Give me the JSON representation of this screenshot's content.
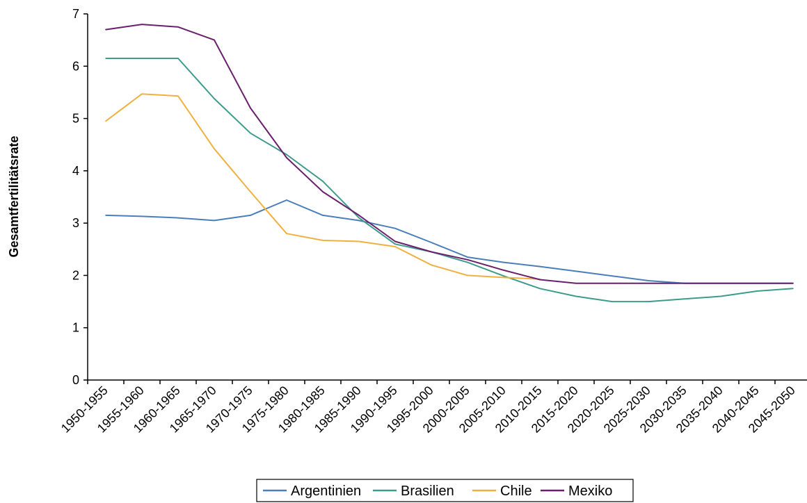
{
  "chart_data": {
    "type": "line",
    "title": "",
    "xlabel": "",
    "ylabel": "Gesamtfertilitätsrate",
    "ylim": [
      0,
      7
    ],
    "yticks": [
      "0",
      "1",
      "2",
      "3",
      "4",
      "5",
      "6",
      "7"
    ],
    "grid": false,
    "legend_position": "bottom",
    "categories": [
      "1950-1955",
      "1955-1960",
      "1960-1965",
      "1965-1970",
      "1970-1975",
      "1975-1980",
      "1980-1985",
      "1985-1990",
      "1990-1995",
      "1995-2000",
      "2000-2005",
      "2005-2010",
      "2010-2015",
      "2015-2020",
      "2020-2025",
      "2025-2030",
      "2030-2035",
      "2035-2040",
      "2040-2045",
      "2045-2050"
    ],
    "series": [
      {
        "name": "Argentinien",
        "color": "#4a7ebb",
        "values": [
          3.15,
          3.13,
          3.1,
          3.05,
          3.15,
          3.44,
          3.15,
          3.05,
          2.9,
          2.63,
          2.35,
          2.25,
          2.17,
          2.08,
          1.99,
          1.9,
          1.85,
          1.85,
          1.85,
          1.85
        ]
      },
      {
        "name": "Brasilien",
        "color": "#3d9b8c",
        "values": [
          6.15,
          6.15,
          6.15,
          5.38,
          4.72,
          4.31,
          3.8,
          3.1,
          2.6,
          2.45,
          2.25,
          1.99,
          1.75,
          1.6,
          1.5,
          1.5,
          1.55,
          1.6,
          1.7,
          1.75
        ]
      },
      {
        "name": "Chile",
        "color": "#f0b040",
        "values": [
          4.95,
          5.47,
          5.43,
          4.42,
          3.6,
          2.8,
          2.67,
          2.65,
          2.55,
          2.2,
          2.0,
          1.96,
          1.93,
          null,
          null,
          null,
          null,
          null,
          null,
          null
        ]
      },
      {
        "name": "Mexiko",
        "color": "#6a1f6e",
        "values": [
          6.7,
          6.8,
          6.75,
          6.5,
          5.2,
          4.25,
          3.6,
          3.15,
          2.65,
          2.45,
          2.3,
          2.1,
          1.92,
          1.85,
          1.85,
          1.85,
          1.85,
          1.85,
          1.85,
          1.85
        ]
      }
    ]
  }
}
